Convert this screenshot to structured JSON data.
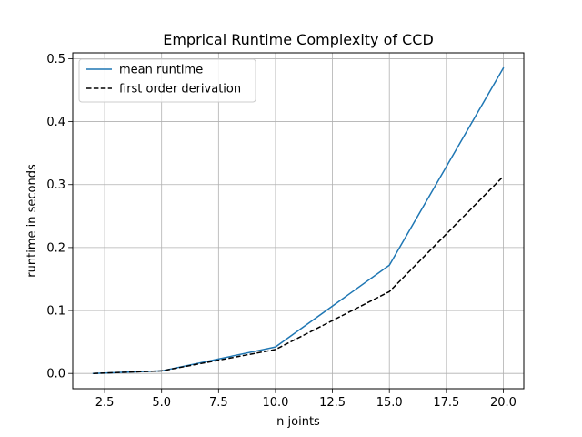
{
  "chart_data": {
    "type": "line",
    "title": "Emprical Runtime Complexity of CCD",
    "xlabel": "n joints",
    "ylabel": "runtime in seconds",
    "xlim": [
      1.1,
      20.9
    ],
    "ylim": [
      -0.0243,
      0.5093
    ],
    "xticks": [
      2.5,
      5.0,
      7.5,
      10.0,
      12.5,
      15.0,
      17.5,
      20.0
    ],
    "xtick_labels": [
      "2.5",
      "5.0",
      "7.5",
      "10.0",
      "12.5",
      "15.0",
      "17.5",
      "20.0"
    ],
    "yticks": [
      0.0,
      0.1,
      0.2,
      0.3,
      0.4,
      0.5
    ],
    "ytick_labels": [
      "0.0",
      "0.1",
      "0.2",
      "0.3",
      "0.4",
      "0.5"
    ],
    "grid": true,
    "legend_position": "top-left",
    "series": [
      {
        "name": "mean runtime",
        "color": "#1f77b4",
        "style": "solid",
        "x": [
          2,
          5,
          10,
          15,
          20
        ],
        "y": [
          0.0,
          0.004,
          0.042,
          0.172,
          0.485
        ]
      },
      {
        "name": "first order derivation",
        "color": "#000000",
        "style": "dashed",
        "x": [
          2,
          5,
          10,
          15,
          20
        ],
        "y": [
          0.0,
          0.004,
          0.038,
          0.13,
          0.313
        ]
      }
    ]
  }
}
